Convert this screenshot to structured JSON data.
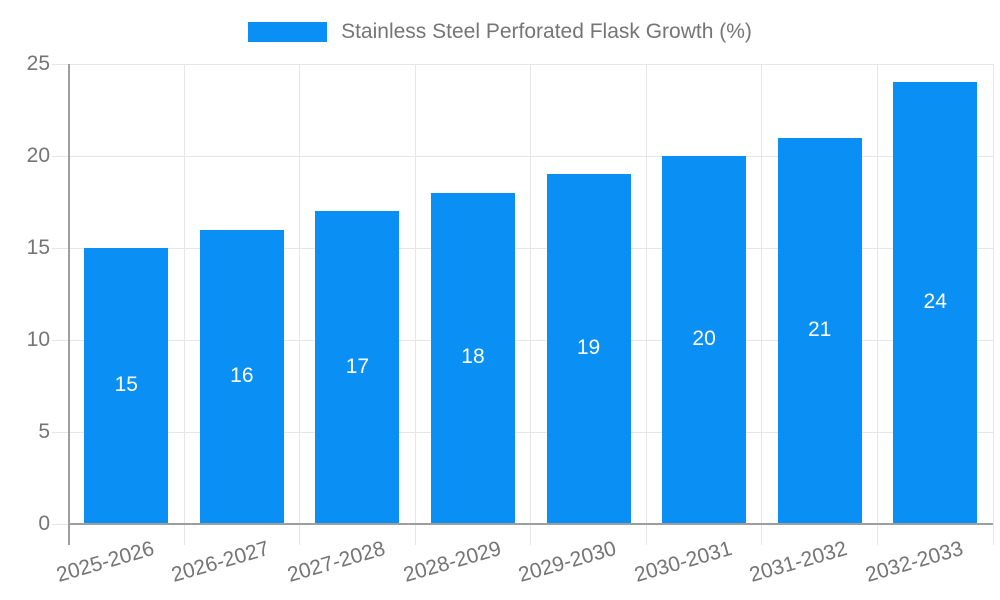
{
  "chart_data": {
    "type": "bar",
    "title": "",
    "categories": [
      "2025-2026",
      "2026-2027",
      "2027-2028",
      "2028-2029",
      "2029-2030",
      "2030-2031",
      "2031-2032",
      "2032-2033"
    ],
    "series": [
      {
        "name": "Stainless Steel Perforated Flask Growth (%)",
        "values": [
          15,
          16,
          17,
          18,
          19,
          20,
          21,
          24
        ]
      }
    ],
    "xlabel": "",
    "ylabel": "",
    "ylim": [
      0,
      25
    ],
    "yticks": [
      0,
      5,
      10,
      15,
      20,
      25
    ],
    "grid": true,
    "legend_position": "top-center",
    "bar_value_labels": "centered-inside-white",
    "colors": {
      "bar": "#0a8ff5",
      "axis": "#9e9e9e",
      "gridline": "#e6e6e6",
      "tick_label": "#757575",
      "legend_text": "#757575",
      "value_label": "#ffffff",
      "background": "#ffffff"
    }
  }
}
